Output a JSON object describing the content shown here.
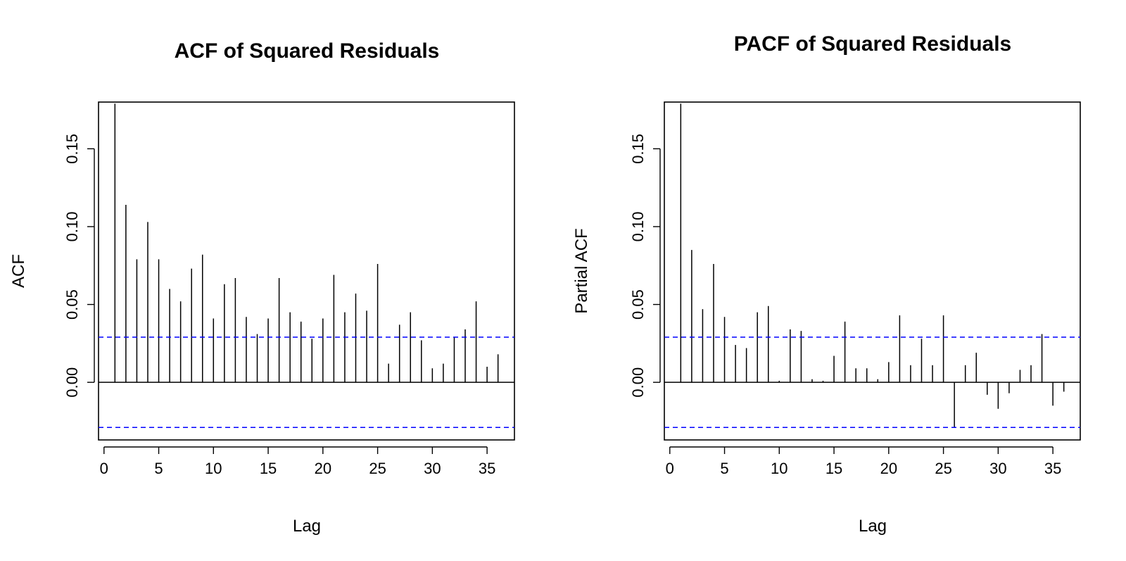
{
  "colors": {
    "bars": "#000000",
    "confidence_band": "#0000ff"
  },
  "chart_data": [
    {
      "type": "bar",
      "title": "ACF of Squared Residuals",
      "xlabel": "Lag",
      "ylabel": "ACF",
      "xlim": [
        -0.5,
        37.5
      ],
      "ylim": [
        -0.037,
        0.18
      ],
      "xticks": [
        0,
        5,
        10,
        15,
        20,
        25,
        30,
        35
      ],
      "xtick_labels": [
        "0",
        "5",
        "10",
        "15",
        "20",
        "25",
        "30",
        "35"
      ],
      "yticks": [
        0.0,
        0.05,
        0.1,
        0.15
      ],
      "ytick_labels": [
        "0.00",
        "0.05",
        "0.10",
        "0.15"
      ],
      "confidence_band": [
        0.029,
        -0.029
      ],
      "grid": false,
      "lags": [
        1,
        2,
        3,
        4,
        5,
        6,
        7,
        8,
        9,
        10,
        11,
        12,
        13,
        14,
        15,
        16,
        17,
        18,
        19,
        20,
        21,
        22,
        23,
        24,
        25,
        26,
        27,
        28,
        29,
        30,
        31,
        32,
        33,
        34,
        35,
        36
      ],
      "values": [
        0.179,
        0.114,
        0.079,
        0.103,
        0.079,
        0.06,
        0.052,
        0.073,
        0.082,
        0.041,
        0.063,
        0.067,
        0.042,
        0.031,
        0.041,
        0.067,
        0.045,
        0.039,
        0.028,
        0.041,
        0.069,
        0.045,
        0.057,
        0.046,
        0.076,
        0.012,
        0.037,
        0.045,
        0.027,
        0.009,
        0.012,
        0.029,
        0.034,
        0.052,
        0.01,
        0.018
      ]
    },
    {
      "type": "bar",
      "title": "PACF of Squared Residuals",
      "xlabel": "Lag",
      "ylabel": "Partial ACF",
      "xlim": [
        -0.5,
        37.5
      ],
      "ylim": [
        -0.037,
        0.18
      ],
      "xticks": [
        0,
        5,
        10,
        15,
        20,
        25,
        30,
        35
      ],
      "xtick_labels": [
        "0",
        "5",
        "10",
        "15",
        "20",
        "25",
        "30",
        "35"
      ],
      "yticks": [
        0.0,
        0.05,
        0.1,
        0.15
      ],
      "ytick_labels": [
        "0.00",
        "0.05",
        "0.10",
        "0.15"
      ],
      "confidence_band": [
        0.029,
        -0.029
      ],
      "grid": false,
      "lags": [
        1,
        2,
        3,
        4,
        5,
        6,
        7,
        8,
        9,
        10,
        11,
        12,
        13,
        14,
        15,
        16,
        17,
        18,
        19,
        20,
        21,
        22,
        23,
        24,
        25,
        26,
        27,
        28,
        29,
        30,
        31,
        32,
        33,
        34,
        35,
        36
      ],
      "values": [
        0.179,
        0.085,
        0.047,
        0.076,
        0.042,
        0.024,
        0.022,
        0.045,
        0.049,
        0.001,
        0.034,
        0.033,
        0.002,
        0.001,
        0.017,
        0.039,
        0.009,
        0.009,
        0.002,
        0.013,
        0.043,
        0.011,
        0.028,
        0.011,
        0.043,
        -0.029,
        0.011,
        0.019,
        -0.008,
        -0.017,
        -0.007,
        0.008,
        0.011,
        0.031,
        -0.015,
        -0.006
      ]
    }
  ]
}
